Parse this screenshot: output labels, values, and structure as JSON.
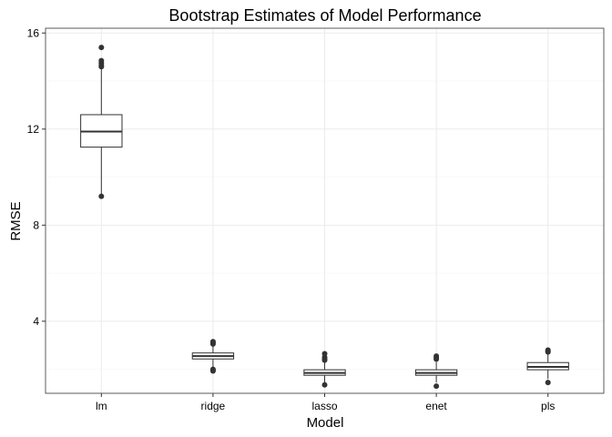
{
  "chart_data": {
    "type": "boxplot",
    "title": "Bootstrap Estimates of Model Performance",
    "xlabel": "Model",
    "ylabel": "RMSE",
    "ylim": [
      1.0,
      16.2
    ],
    "yticks": [
      4,
      8,
      12,
      16
    ],
    "grid": true,
    "categories": [
      "lm",
      "ridge",
      "lasso",
      "enet",
      "pls"
    ],
    "boxes": [
      {
        "category": "lm",
        "whisker_low": 9.2,
        "q1": 11.25,
        "median": 11.9,
        "q3": 12.6,
        "whisker_high": 14.5,
        "outliers": [
          15.4,
          14.85,
          14.75,
          14.65,
          14.6,
          9.2
        ]
      },
      {
        "category": "ridge",
        "whisker_low": 2.05,
        "q1": 2.43,
        "median": 2.55,
        "q3": 2.68,
        "whisker_high": 3.0,
        "outliers": [
          3.15,
          3.1,
          3.05,
          2.0,
          1.95,
          1.93
        ]
      },
      {
        "category": "lasso",
        "whisker_low": 1.45,
        "q1": 1.75,
        "median": 1.85,
        "q3": 1.98,
        "whisker_high": 2.3,
        "outliers": [
          2.65,
          2.5,
          2.42,
          2.38,
          1.35
        ]
      },
      {
        "category": "enet",
        "whisker_low": 1.45,
        "q1": 1.75,
        "median": 1.85,
        "q3": 1.98,
        "whisker_high": 2.3,
        "outliers": [
          2.55,
          2.48,
          2.42,
          1.3
        ]
      },
      {
        "category": "pls",
        "whisker_low": 1.6,
        "q1": 1.98,
        "median": 2.1,
        "q3": 2.28,
        "whisker_high": 2.65,
        "outliers": [
          2.8,
          2.75,
          2.72,
          1.45
        ]
      }
    ]
  }
}
